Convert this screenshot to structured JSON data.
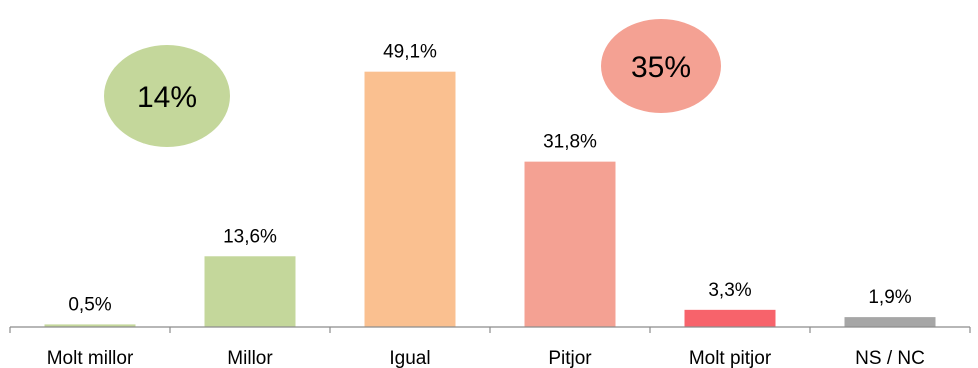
{
  "chart_data": {
    "type": "bar",
    "categories": [
      "Molt millor",
      "Millor",
      "Igual",
      "Pitjor",
      "Molt pitjor",
      "NS / NC"
    ],
    "values": [
      0.5,
      13.6,
      49.1,
      31.8,
      3.3,
      1.9
    ],
    "value_labels": [
      "0,5%",
      "13,6%",
      "49,1%",
      "31,8%",
      "3,3%",
      "1,9%"
    ],
    "colors": [
      "#c4d79b",
      "#c4d79b",
      "#fac090",
      "#f4a193",
      "#f7636b",
      "#a6a6a6"
    ],
    "title": "",
    "xlabel": "",
    "ylabel": "",
    "ylim": [
      0,
      50
    ],
    "grid": false,
    "legend": "none"
  },
  "annotations": [
    {
      "label": "14%",
      "color": "#c4d79b",
      "near": "Millor"
    },
    {
      "label": "35%",
      "color": "#f4a193",
      "near": "Pitjor"
    }
  ]
}
